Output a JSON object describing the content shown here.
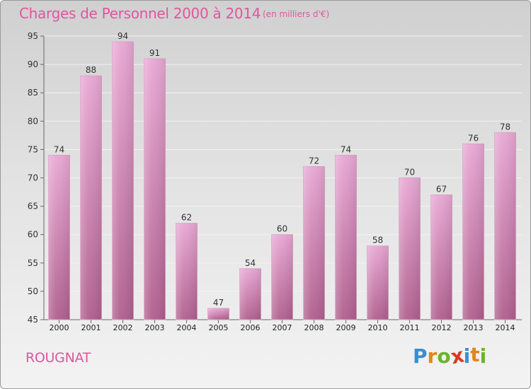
{
  "header": {
    "title": "Charges de Personnel 2000 à 2014",
    "subtitle": "(en milliers d'€)"
  },
  "footer": {
    "commune": "ROUGNAT",
    "brand_letters": [
      "P",
      "r",
      "o",
      "x",
      "i",
      "t",
      "i"
    ]
  },
  "colors": {
    "title": "#e0569e",
    "bar_top": "#e8a8d4",
    "bar_bottom": "#b0608e",
    "brand_letters": [
      "#3a8fd0",
      "#e0861a",
      "#6ab42a",
      "#d83a1f",
      "#3a8fd0",
      "#e0861a",
      "#6ab42a"
    ]
  },
  "chart_data": {
    "type": "bar",
    "categories": [
      "2000",
      "2001",
      "2002",
      "2003",
      "2004",
      "2005",
      "2006",
      "2007",
      "2008",
      "2009",
      "2010",
      "2011",
      "2012",
      "2013",
      "2014"
    ],
    "values": [
      74,
      88,
      94,
      91,
      62,
      47,
      54,
      60,
      72,
      74,
      58,
      70,
      67,
      76,
      78
    ],
    "ylim": [
      45,
      95
    ],
    "yticks": [
      45,
      50,
      55,
      60,
      65,
      70,
      75,
      80,
      85,
      90,
      95
    ],
    "grid": true,
    "xlabel": "",
    "ylabel": ""
  }
}
